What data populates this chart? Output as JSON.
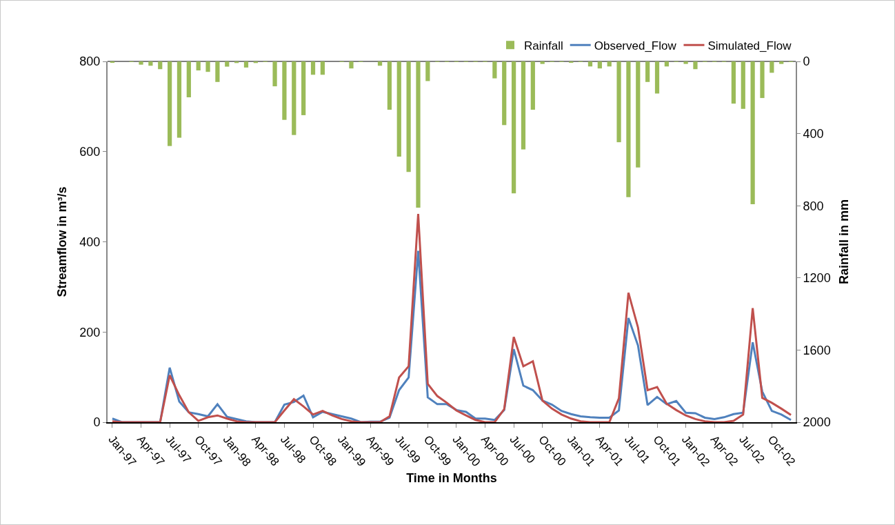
{
  "chart_data": {
    "type": "line",
    "xlabel": "Time in Months",
    "ylabel": "Streamflow in m³/s",
    "y2label": "Rainfall in mm",
    "categories": [
      "Jan-97",
      null,
      null,
      "Apr-97",
      null,
      null,
      "Jul-97",
      null,
      null,
      "Oct-97",
      null,
      null,
      "Jan-98",
      null,
      null,
      "Apr-98",
      null,
      null,
      "Jul-98",
      null,
      null,
      "Oct-98",
      null,
      null,
      "Jan-99",
      null,
      null,
      "Apr-99",
      null,
      null,
      "Jul-99",
      null,
      null,
      "Oct-99",
      null,
      null,
      "Jan-00",
      null,
      null,
      "Apr-00",
      null,
      null,
      "Jul-00",
      null,
      null,
      "Oct-00",
      null,
      null,
      "Jan-01",
      null,
      null,
      "Apr-01",
      null,
      null,
      "Jul-01",
      null,
      null,
      "Oct-01",
      null,
      null,
      "Jan-02",
      null,
      null,
      "Apr-02",
      null,
      null,
      "Jul-02",
      null,
      null,
      "Oct-02",
      null,
      null
    ],
    "series": [
      {
        "name": "Rainfall",
        "type": "bar",
        "axis": "y2",
        "color": "#9bbb59",
        "values": [
          8,
          0,
          3,
          18,
          24,
          43,
          469,
          423,
          199,
          50,
          58,
          114,
          29,
          9,
          34,
          9,
          3,
          138,
          324,
          408,
          298,
          74,
          74,
          0,
          3,
          39,
          3,
          0,
          24,
          268,
          528,
          613,
          811,
          109,
          3,
          3,
          3,
          3,
          3,
          3,
          94,
          353,
          731,
          488,
          268,
          14,
          3,
          3,
          8,
          3,
          28,
          39,
          28,
          448,
          752,
          588,
          114,
          178,
          28,
          3,
          14,
          43,
          3,
          3,
          3,
          234,
          263,
          792,
          203,
          63,
          14,
          3
        ]
      },
      {
        "name": "Observed_Flow",
        "color": "#4f81bd",
        "values": [
          8,
          0,
          0,
          0,
          0,
          0,
          121,
          46,
          22,
          18,
          13,
          40,
          12,
          7,
          2,
          0,
          0,
          0,
          39,
          45,
          59,
          11,
          23,
          18,
          13,
          8,
          0,
          1,
          1,
          10,
          71,
          99,
          380,
          55,
          40,
          40,
          27,
          23,
          8,
          8,
          5,
          27,
          162,
          81,
          71,
          48,
          39,
          25,
          18,
          13,
          11,
          10,
          10,
          26,
          231,
          170,
          38,
          56,
          40,
          47,
          21,
          20,
          10,
          7,
          11,
          18,
          21,
          177,
          68,
          25,
          17,
          5
        ]
      },
      {
        "name": "Simulated_Flow",
        "color": "#c0504d",
        "values": [
          2,
          0,
          0,
          0,
          0,
          0,
          104,
          60,
          22,
          3,
          11,
          15,
          8,
          2,
          0,
          0,
          0,
          0,
          26,
          51,
          35,
          17,
          25,
          15,
          7,
          2,
          0,
          0,
          0,
          13,
          99,
          124,
          462,
          85,
          58,
          43,
          26,
          15,
          5,
          0,
          0,
          29,
          189,
          124,
          135,
          48,
          30,
          17,
          8,
          2,
          0,
          0,
          0,
          53,
          287,
          210,
          71,
          78,
          41,
          27,
          15,
          7,
          2,
          0,
          0,
          3,
          17,
          253,
          54,
          43,
          30,
          16
        ]
      }
    ],
    "ylim": [
      0,
      800
    ],
    "yticks": [
      0,
      200,
      400,
      600,
      800
    ],
    "y2lim": [
      2000,
      0
    ],
    "y2ticks": [
      0,
      400,
      800,
      1200,
      1600,
      2000
    ],
    "legend": "top right"
  }
}
